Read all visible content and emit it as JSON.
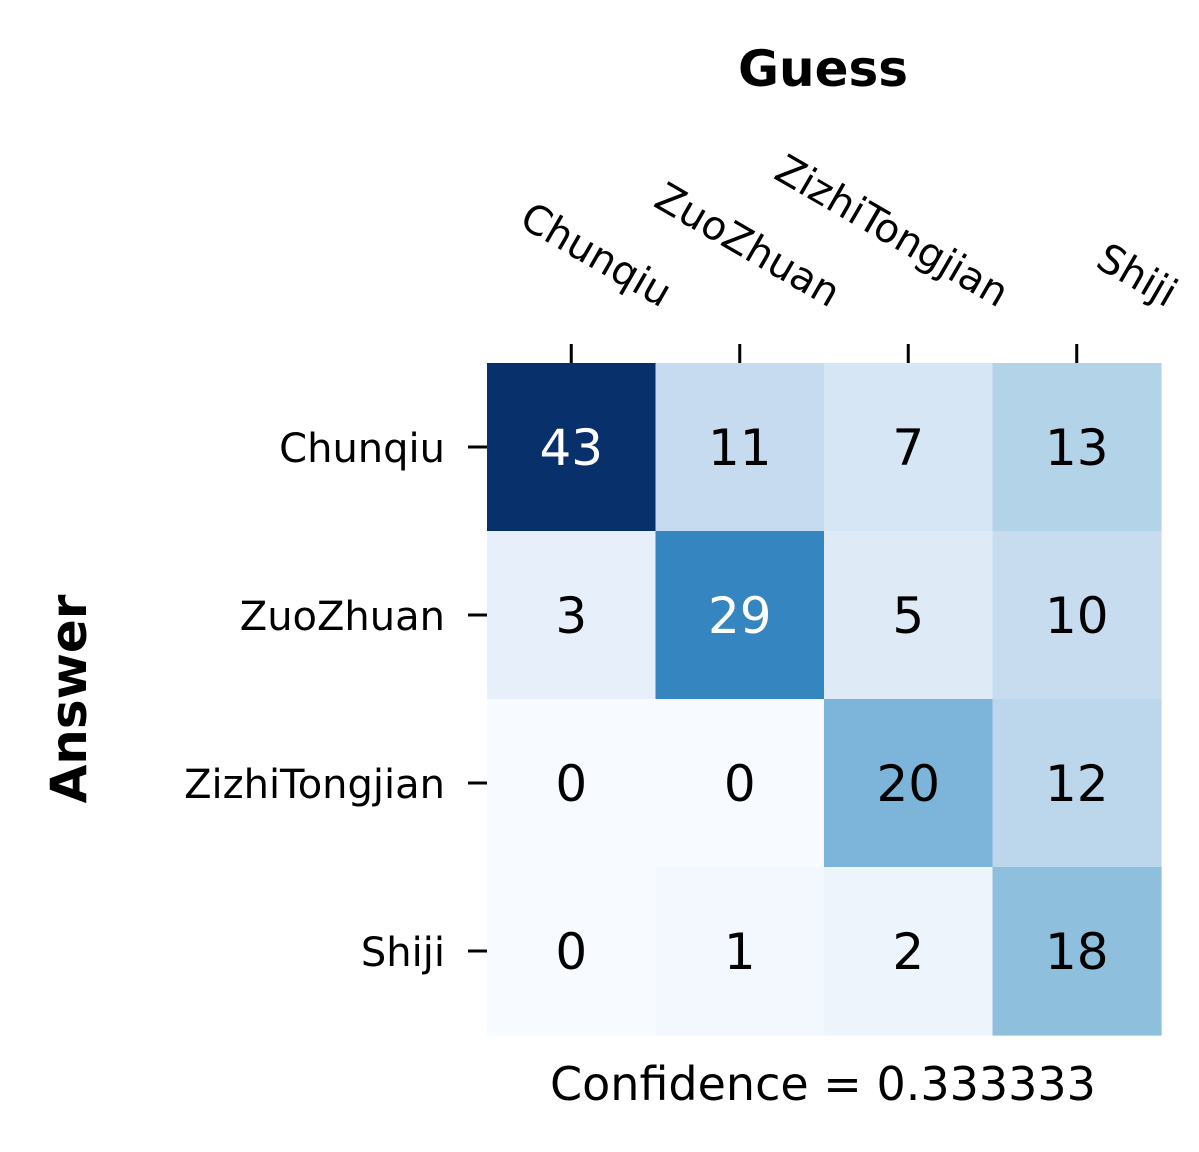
{
  "chart_data": {
    "type": "heatmap",
    "title": "Guess",
    "xlabel": "Guess",
    "ylabel": "Answer",
    "x_categories": [
      "Chunqiu",
      "ZuoZhuan",
      "ZizhiTongjian",
      "Shiji"
    ],
    "y_categories": [
      "Chunqiu",
      "ZuoZhuan",
      "ZizhiTongjian",
      "Shiji"
    ],
    "values": [
      [
        43,
        11,
        7,
        13
      ],
      [
        3,
        29,
        5,
        10
      ],
      [
        0,
        0,
        20,
        12
      ],
      [
        0,
        1,
        2,
        18
      ]
    ],
    "cell_colors": [
      [
        "#08306b",
        "#c6dbef",
        "#d6e6f4",
        "#b3d3e8"
      ],
      [
        "#e7f0fa",
        "#3585c0",
        "#deebf7",
        "#c8dcf0"
      ],
      [
        "#f7fbff",
        "#f7fbff",
        "#7cb5d9",
        "#bcd7ec"
      ],
      [
        "#f7fbff",
        "#f3f8fe",
        "#edf4fc",
        "#8ebfdd"
      ]
    ],
    "text_color_dark_cells": "#ffffff",
    "text_color_light_cells": "#000000",
    "colormap": "Blues",
    "colorbar": false,
    "x_tick_position": "top",
    "x_tick_rotation": "-30",
    "footer_text": "Confidence = 0.333333"
  }
}
